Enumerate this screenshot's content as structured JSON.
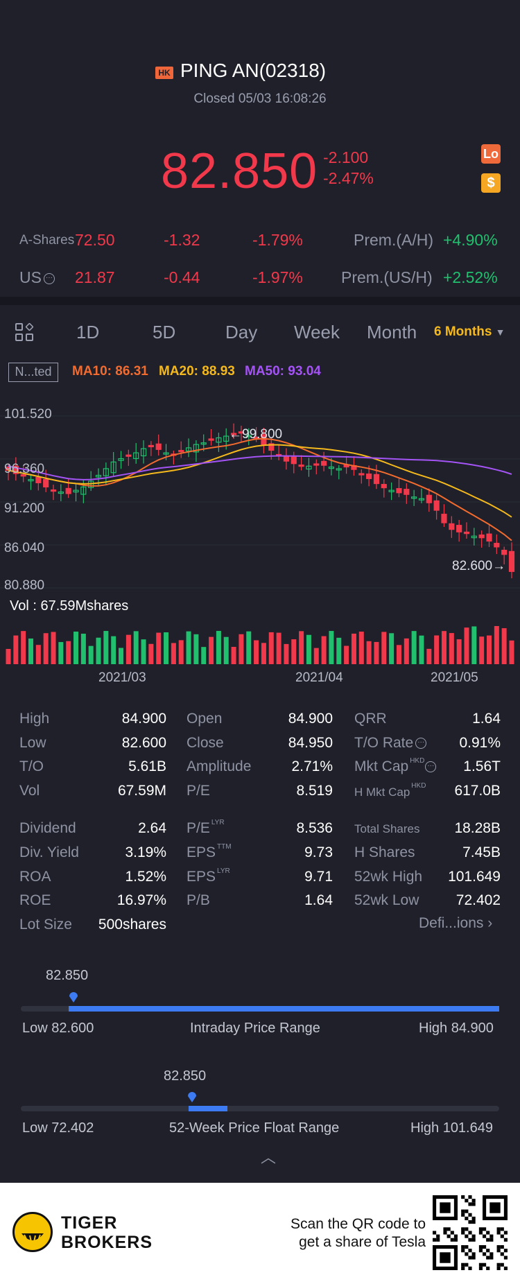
{
  "header": {
    "market_badge": "HK",
    "title": "PING AN(02318)",
    "status": "Closed 05/03 16:08:26",
    "price": "82.850",
    "change": "-2.100",
    "change_pct": "-2.47%",
    "badge_lo": "Lo",
    "badge_dollar": "$"
  },
  "a_shares": {
    "label": "A-Shares",
    "price": "72.50",
    "change": "-1.32",
    "pct": "-1.79%",
    "prem_label": "Prem.(A/H)",
    "prem_value": "+4.90%"
  },
  "us_shares": {
    "label": "US",
    "price": "21.87",
    "change": "-0.44",
    "pct": "-1.97%",
    "prem_label": "Prem.(US/H)",
    "prem_value": "+2.52%"
  },
  "tabs": {
    "t1": "1D",
    "t2": "5D",
    "t3": "Day",
    "t4": "Week",
    "t5": "Month",
    "active": "6 Months"
  },
  "indicators": {
    "box": "N...ted",
    "ma10": "MA10: 86.31",
    "ma20": "MA20: 88.93",
    "ma50": "MA50: 93.04"
  },
  "chart_data": {
    "type": "candlestick",
    "y_ticks": [
      "101.520",
      "96.360",
      "91.200",
      "86.040",
      "80.880"
    ],
    "ylim": [
      80.88,
      101.52
    ],
    "high_marker": "←99.800",
    "low_marker": "82.600→",
    "volume_label": "Vol  : 67.59Mshares",
    "x_ticks": [
      "2021/03",
      "2021/04",
      "2021/05"
    ],
    "close": [
      95.0,
      94.6,
      94.3,
      93.9,
      93.5,
      93.0,
      92.6,
      92.4,
      92.2,
      92.6,
      93.0,
      93.7,
      94.4,
      95.2,
      96.0,
      96.4,
      96.7,
      97.1,
      97.6,
      97.9,
      97.5,
      97.1,
      96.9,
      97.3,
      97.7,
      98.1,
      98.3,
      98.6,
      98.9,
      99.1,
      99.3,
      99.5,
      99.2,
      98.8,
      98.1,
      97.4,
      96.7,
      96.1,
      95.8,
      95.6,
      95.5,
      95.7,
      95.6,
      95.4,
      95.2,
      95.4,
      95.1,
      94.6,
      94.0,
      93.4,
      92.9,
      92.6,
      92.3,
      92.1,
      91.8,
      91.6,
      91.1,
      90.2,
      88.7,
      87.9,
      87.6,
      87.4,
      87.1,
      86.9,
      86.5,
      85.8,
      84.9,
      82.85
    ],
    "series": [
      {
        "name": "MA10",
        "color": "#f36b2f"
      },
      {
        "name": "MA20",
        "color": "#f5b91e"
      },
      {
        "name": "MA50",
        "color": "#a454f5"
      }
    ]
  },
  "stats": {
    "high_l": "High",
    "high_v": "84.900",
    "low_l": "Low",
    "low_v": "82.600",
    "to_l": "T/O",
    "to_v": "5.61B",
    "vol_l": "Vol",
    "vol_v": "67.59M",
    "open_l": "Open",
    "open_v": "84.900",
    "close_l": "Close",
    "close_v": "84.950",
    "amp_l": "Amplitude",
    "amp_v": "2.71%",
    "pe_l": "P/E",
    "pe_v": "8.519",
    "qrr_l": "QRR",
    "qrr_v": "1.64",
    "tor_l": "T/O Rate",
    "tor_v": "0.91%",
    "mcap_l": "Mkt Cap",
    "mcap_v": "1.56T",
    "hmcap_l": "H Mkt Cap",
    "hmcap_v": "617.0B",
    "div_l": "Dividend",
    "div_v": "2.64",
    "dy_l": "Div. Yield",
    "dy_v": "3.19%",
    "roa_l": "ROA",
    "roa_v": "1.52%",
    "roe_l": "ROE",
    "roe_v": "16.97%",
    "lot_l": "Lot Size",
    "lot_v": "500shares",
    "pelyr_l": "P/E",
    "pelyr_v": "8.536",
    "epsttm_l": "EPS",
    "epsttm_v": "9.73",
    "epslyr_l": "EPS",
    "epslyr_v": "9.71",
    "pb_l": "P/B",
    "pb_v": "1.64",
    "ts_l": "Total Shares",
    "ts_v": "18.28B",
    "hs_l": "H Shares",
    "hs_v": "7.45B",
    "wkh_l": "52wk High",
    "wkh_v": "101.649",
    "wkl_l": "52wk Low",
    "wkl_v": "72.402",
    "sup_lyr": "LYR",
    "sup_ttm": "TTM",
    "sup_hkd": "HKD",
    "definitions": "Defi...ions"
  },
  "intraday": {
    "current": "82.850",
    "low": "Low 82.600",
    "title": "Intraday Price Range",
    "high": "High 84.900",
    "position": 0.1
  },
  "week52": {
    "current": "82.850",
    "low": "Low 72.402",
    "title": "52-Week Price Float Range",
    "high": "High 101.649",
    "position": 0.357
  },
  "footer": {
    "brand1": "TIGER",
    "brand2": "BROKERS",
    "scan1": "Scan the QR code to",
    "scan2": "get a share of Tesla"
  }
}
